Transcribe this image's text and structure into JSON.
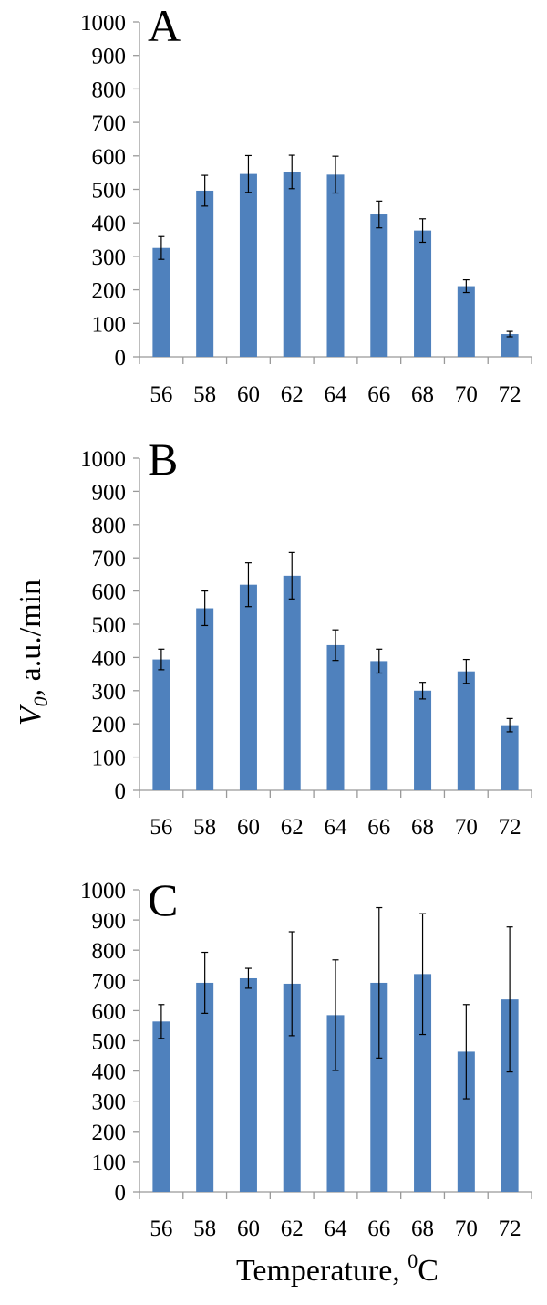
{
  "ylabel_main": "V",
  "ylabel_sub": "0",
  "ylabel_rest": ", a.u./min",
  "xlabel_main": "Temperature, ",
  "xlabel_sup": "0",
  "xlabel_unit": "C",
  "bar_color": "#4F81BD",
  "chart_data": [
    {
      "type": "bar",
      "panel_label": "A",
      "categories": [
        "56",
        "58",
        "60",
        "62",
        "64",
        "66",
        "68",
        "70",
        "72"
      ],
      "values": [
        325,
        496,
        546,
        552,
        544,
        425,
        377,
        211,
        68
      ],
      "errors": [
        34,
        46,
        55,
        50,
        55,
        40,
        35,
        19,
        8
      ],
      "ylim": [
        0,
        1000
      ],
      "yticks": [
        "0",
        "100",
        "200",
        "300",
        "400",
        "500",
        "600",
        "700",
        "800",
        "900",
        "1000"
      ]
    },
    {
      "type": "bar",
      "panel_label": "B",
      "categories": [
        "56",
        "58",
        "60",
        "62",
        "64",
        "66",
        "68",
        "70",
        "72"
      ],
      "values": [
        394,
        548,
        619,
        646,
        437,
        389,
        300,
        358,
        196
      ],
      "errors": [
        31,
        52,
        66,
        70,
        46,
        36,
        25,
        36,
        20
      ],
      "ylim": [
        0,
        1000
      ],
      "yticks": [
        "0",
        "100",
        "200",
        "300",
        "400",
        "500",
        "600",
        "700",
        "800",
        "900",
        "1000"
      ]
    },
    {
      "type": "bar",
      "panel_label": "C",
      "categories": [
        "56",
        "58",
        "60",
        "62",
        "64",
        "66",
        "68",
        "70",
        "72"
      ],
      "values": [
        564,
        692,
        707,
        689,
        585,
        692,
        721,
        464,
        637
      ],
      "errors": [
        56,
        101,
        33,
        172,
        183,
        249,
        200,
        156,
        240
      ],
      "ylim": [
        0,
        1000
      ],
      "yticks": [
        "0",
        "100",
        "200",
        "300",
        "400",
        "500",
        "600",
        "700",
        "800",
        "900",
        "1000"
      ]
    }
  ]
}
